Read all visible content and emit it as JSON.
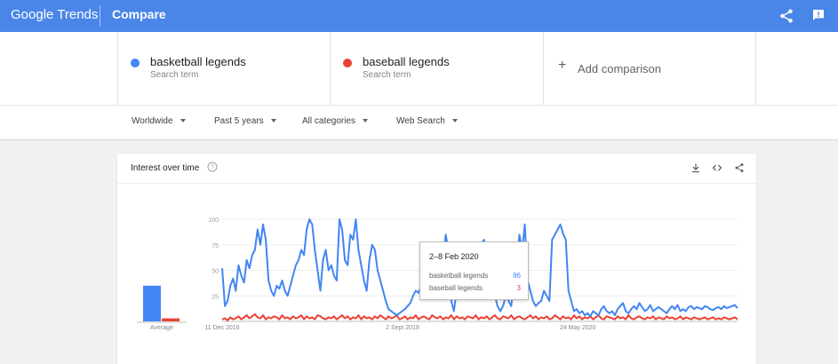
{
  "app": {
    "logo_text": "Google Trends",
    "page_title": "Compare",
    "brand_color": "#4a86e8"
  },
  "header_icons": [
    "share-icon",
    "feedback-icon"
  ],
  "terms": [
    {
      "name": "basketball legends",
      "type": "Search term",
      "color": "#4285f4"
    },
    {
      "name": "baseball legends",
      "type": "Search term",
      "color": "#ea4335"
    }
  ],
  "add_comparison": "Add comparison",
  "filters": {
    "region": "Worldwide",
    "time": "Past 5 years",
    "category": "All categories",
    "search_type": "Web Search"
  },
  "card": {
    "title": "Interest over time",
    "icons": [
      "help-icon",
      "download-icon",
      "embed-icon",
      "share-icon"
    ]
  },
  "tooltip": {
    "date": "2–8 Feb 2020",
    "rows": [
      {
        "label": "basketball legends",
        "value": "86",
        "color": "#4285f4"
      },
      {
        "label": "baseball legends",
        "value": "3",
        "color": "#ea4335"
      }
    ]
  },
  "chart_data": {
    "type": "line",
    "average_label": "Average",
    "averages": [
      {
        "name": "basketball legends",
        "value": 35,
        "color": "#4285f4"
      },
      {
        "name": "baseball legends",
        "value": 3,
        "color": "#ea4335"
      }
    ],
    "y_ticks": [
      "100",
      "75",
      "50",
      "25"
    ],
    "ylim": [
      0,
      100
    ],
    "x_tick_labels": [
      "11 Dec 2016",
      "2 Sept 2018",
      "24 May 2020"
    ],
    "x_tick_positions": [
      0,
      0.35,
      0.69
    ],
    "series": [
      {
        "name": "basketball legends",
        "color": "#4285f4",
        "values": [
          52,
          15,
          20,
          35,
          42,
          30,
          55,
          45,
          38,
          60,
          52,
          65,
          70,
          90,
          75,
          95,
          80,
          40,
          30,
          25,
          35,
          32,
          40,
          30,
          25,
          35,
          45,
          55,
          60,
          70,
          65,
          90,
          100,
          95,
          70,
          50,
          30,
          60,
          70,
          50,
          55,
          45,
          40,
          100,
          90,
          60,
          55,
          85,
          80,
          100,
          70,
          55,
          40,
          30,
          60,
          75,
          70,
          50,
          40,
          30,
          20,
          12,
          10,
          8,
          6,
          8,
          10,
          12,
          15,
          18,
          25,
          30,
          28,
          35,
          40,
          38,
          45,
          42,
          50,
          48,
          55,
          60,
          85,
          70,
          20,
          10,
          30,
          60,
          70,
          50,
          40,
          55,
          60,
          70,
          65,
          75,
          80,
          60,
          45,
          30,
          25,
          15,
          10,
          15,
          25,
          20,
          15,
          40,
          60,
          85,
          70,
          95,
          40,
          30,
          20,
          15,
          18,
          20,
          30,
          25,
          20,
          80,
          85,
          90,
          95,
          86,
          80,
          30,
          20,
          10,
          12,
          8,
          10,
          6,
          8,
          5,
          10,
          8,
          6,
          12,
          15,
          10,
          8,
          10,
          6,
          12,
          15,
          18,
          10,
          8,
          12,
          15,
          12,
          18,
          14,
          10,
          12,
          16,
          10,
          12,
          14,
          12,
          10,
          8,
          12,
          15,
          12,
          16,
          10,
          12,
          10,
          14,
          15,
          12,
          14,
          13,
          12,
          15,
          14,
          12,
          11,
          13,
          14,
          12,
          15,
          13,
          14,
          15,
          16,
          13
        ]
      },
      {
        "name": "baseball legends",
        "color": "#ea4335",
        "values": [
          2,
          3,
          1,
          4,
          2,
          3,
          5,
          2,
          4,
          6,
          3,
          5,
          7,
          4,
          3,
          6,
          2,
          4,
          3,
          5,
          4,
          2,
          6,
          3,
          4,
          2,
          5,
          3,
          4,
          6,
          2,
          5,
          3,
          4,
          2,
          6,
          5,
          3,
          2,
          4,
          3,
          5,
          2,
          4,
          6,
          3,
          5,
          2,
          4,
          3,
          6,
          2,
          5,
          3,
          4,
          2,
          5,
          3,
          6,
          4,
          2,
          5,
          3,
          4,
          6,
          2,
          3,
          5,
          2,
          4,
          3,
          6,
          2,
          4,
          5,
          3,
          2,
          6,
          4,
          3,
          5,
          2,
          4,
          3,
          6,
          2,
          5,
          3,
          4,
          2,
          5,
          4,
          3,
          6,
          2,
          4,
          3,
          5,
          2,
          4,
          6,
          3,
          2,
          5,
          4,
          3,
          6,
          2,
          4,
          5,
          3,
          2,
          4,
          6,
          3,
          5,
          2,
          4,
          3,
          5,
          2,
          3,
          6,
          4,
          2,
          5,
          3,
          4,
          2,
          6,
          3,
          5,
          2,
          4,
          3,
          5,
          2,
          4,
          6,
          3,
          2,
          5,
          4,
          3,
          2,
          5,
          3,
          4,
          2,
          6,
          3,
          2,
          4,
          5,
          3,
          2,
          4,
          3,
          5,
          2,
          4,
          3,
          2,
          5,
          3,
          4,
          2,
          3,
          5,
          2,
          4,
          3,
          2,
          4,
          3,
          2,
          3,
          4,
          2,
          3,
          4,
          2,
          3,
          2,
          4,
          3,
          2,
          3,
          4,
          2
        ]
      }
    ]
  }
}
